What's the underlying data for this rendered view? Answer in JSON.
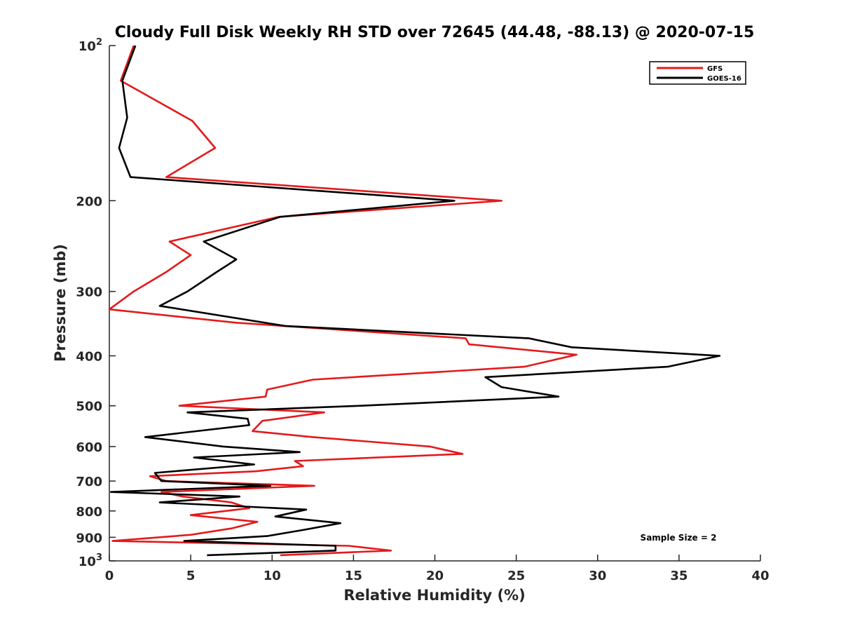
{
  "chart_data": {
    "type": "line",
    "title": "Cloudy Full Disk Weekly RH STD over 72645 (44.48, -88.13) @ 2020-07-15",
    "xlabel": "Relative Humidity (%)",
    "ylabel": "Pressure (mb)",
    "xlim": [
      0,
      40
    ],
    "ylim": [
      100,
      1000
    ],
    "y_scale": "log",
    "y_reversed": true,
    "grid": false,
    "legend_position": "top-right",
    "annotation": "Sample Size = 2",
    "x_ticks": [
      {
        "value": 0,
        "label": "0"
      },
      {
        "value": 5,
        "label": "5"
      },
      {
        "value": 10,
        "label": "10"
      },
      {
        "value": 15,
        "label": "15"
      },
      {
        "value": 20,
        "label": "20"
      },
      {
        "value": 25,
        "label": "25"
      },
      {
        "value": 30,
        "label": "30"
      },
      {
        "value": 35,
        "label": "35"
      },
      {
        "value": 40,
        "label": "40"
      }
    ],
    "y_ticks": [
      {
        "value": 100,
        "base": "10",
        "exp": "2"
      },
      {
        "value": 200,
        "label": "200"
      },
      {
        "value": 300,
        "label": "300"
      },
      {
        "value": 400,
        "label": "400"
      },
      {
        "value": 500,
        "label": "500"
      },
      {
        "value": 600,
        "label": "600"
      },
      {
        "value": 700,
        "label": "700"
      },
      {
        "value": 800,
        "label": "800"
      },
      {
        "value": 900,
        "label": "900"
      },
      {
        "value": 1000,
        "base": "10",
        "exp": "3"
      }
    ],
    "series": [
      {
        "name": "GFS",
        "color": "#e41a1c",
        "points": [
          [
            1.5,
            100
          ],
          [
            0.7,
            117
          ],
          [
            5.1,
            140
          ],
          [
            6.5,
            158
          ],
          [
            3.5,
            180
          ],
          [
            24.1,
            200
          ],
          [
            10.4,
            215
          ],
          [
            3.7,
            240
          ],
          [
            5.0,
            255
          ],
          [
            3.5,
            275
          ],
          [
            1.5,
            300
          ],
          [
            0.0,
            325
          ],
          [
            7.8,
            345
          ],
          [
            21.9,
            370
          ],
          [
            22.1,
            380
          ],
          [
            28.7,
            398
          ],
          [
            25.5,
            420
          ],
          [
            12.5,
            445
          ],
          [
            9.7,
            465
          ],
          [
            9.6,
            480
          ],
          [
            4.3,
            500
          ],
          [
            13.2,
            515
          ],
          [
            9.4,
            535
          ],
          [
            8.8,
            560
          ],
          [
            12.5,
            575
          ],
          [
            19.7,
            600
          ],
          [
            21.7,
            620
          ],
          [
            11.4,
            640
          ],
          [
            11.9,
            655
          ],
          [
            9.0,
            670
          ],
          [
            2.5,
            685
          ],
          [
            3.5,
            700
          ],
          [
            12.6,
            715
          ],
          [
            3.2,
            735
          ],
          [
            4.5,
            750
          ],
          [
            7.5,
            770
          ],
          [
            8.6,
            790
          ],
          [
            5.0,
            815
          ],
          [
            9.1,
            840
          ],
          [
            7.5,
            865
          ],
          [
            5.0,
            890
          ],
          [
            0.2,
            915
          ],
          [
            14.7,
            935
          ],
          [
            17.3,
            955
          ],
          [
            10.5,
            975
          ]
        ]
      },
      {
        "name": "GOES-16",
        "color": "#000000",
        "points": [
          [
            1.6,
            100
          ],
          [
            0.8,
            117
          ],
          [
            1.1,
            138
          ],
          [
            0.6,
            158
          ],
          [
            1.3,
            180
          ],
          [
            21.2,
            200
          ],
          [
            10.5,
            215
          ],
          [
            5.8,
            240
          ],
          [
            7.8,
            260
          ],
          [
            6.6,
            275
          ],
          [
            4.8,
            300
          ],
          [
            3.1,
            320
          ],
          [
            10.8,
            350
          ],
          [
            25.8,
            370
          ],
          [
            28.4,
            385
          ],
          [
            37.5,
            400
          ],
          [
            34.3,
            420
          ],
          [
            23.1,
            440
          ],
          [
            24.1,
            460
          ],
          [
            27.6,
            480
          ],
          [
            15.5,
            500
          ],
          [
            4.8,
            515
          ],
          [
            8.5,
            530
          ],
          [
            8.6,
            545
          ],
          [
            2.2,
            575
          ],
          [
            7.0,
            600
          ],
          [
            11.7,
            615
          ],
          [
            5.2,
            630
          ],
          [
            8.9,
            650
          ],
          [
            2.8,
            675
          ],
          [
            3.2,
            700
          ],
          [
            9.9,
            715
          ],
          [
            0.1,
            735
          ],
          [
            8.0,
            750
          ],
          [
            3.1,
            770
          ],
          [
            12.1,
            795
          ],
          [
            10.2,
            820
          ],
          [
            14.2,
            845
          ],
          [
            12.0,
            870
          ],
          [
            9.7,
            895
          ],
          [
            4.6,
            915
          ],
          [
            13.9,
            935
          ],
          [
            13.9,
            955
          ],
          [
            6.0,
            975
          ]
        ]
      }
    ]
  }
}
